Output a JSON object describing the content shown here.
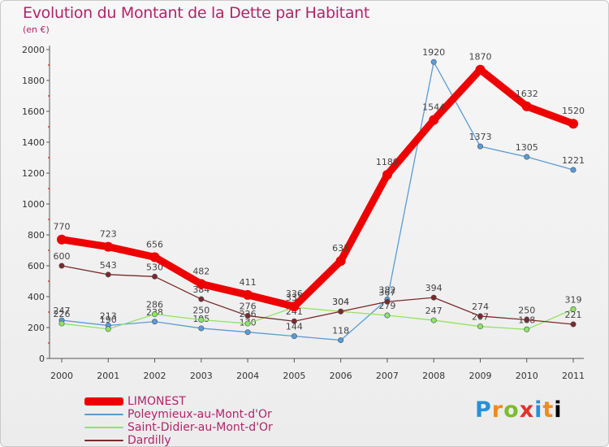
{
  "header": {
    "title": "Evolution du Montant de la Dette par Habitant",
    "subtitle": "(en €)"
  },
  "logo": {
    "letters": [
      "P",
      "r",
      "o",
      "x",
      "i",
      "t",
      "i"
    ]
  },
  "chart_data": {
    "type": "line",
    "x": [
      "2000",
      "2001",
      "2002",
      "2003",
      "2004",
      "2005",
      "2006",
      "2007",
      "2008",
      "2009",
      "2010",
      "2011"
    ],
    "ylim": [
      0,
      2000
    ],
    "yticks": [
      0,
      200,
      400,
      600,
      800,
      1000,
      1200,
      1400,
      1600,
      1800,
      2000
    ],
    "grid": false,
    "legend_position": "bottom-left",
    "series": [
      {
        "name": "LIMONEST",
        "color": "#ee0000",
        "values": [
          770,
          723,
          656,
          482,
          411,
          336,
          631,
          1189,
          1544,
          1870,
          1632,
          1520
        ]
      },
      {
        "name": "Poleymieux-au-Mont-d'Or",
        "color": "#5b9bd5",
        "values": [
          247,
          213,
          238,
          195,
          170,
          144,
          118,
          382,
          1920,
          1373,
          1305,
          1221
        ]
      },
      {
        "name": "Saint-Didier-au-Mont-d'Or",
        "color": "#8ee55e",
        "values": [
          226,
          190,
          286,
          250,
          226,
          331,
          304,
          279,
          247,
          207,
          188,
          319
        ]
      },
      {
        "name": "Dardilly",
        "color": "#7b2a2a",
        "values": [
          600,
          543,
          530,
          384,
          276,
          241,
          304,
          367,
          394,
          274,
          250,
          221
        ]
      }
    ]
  }
}
